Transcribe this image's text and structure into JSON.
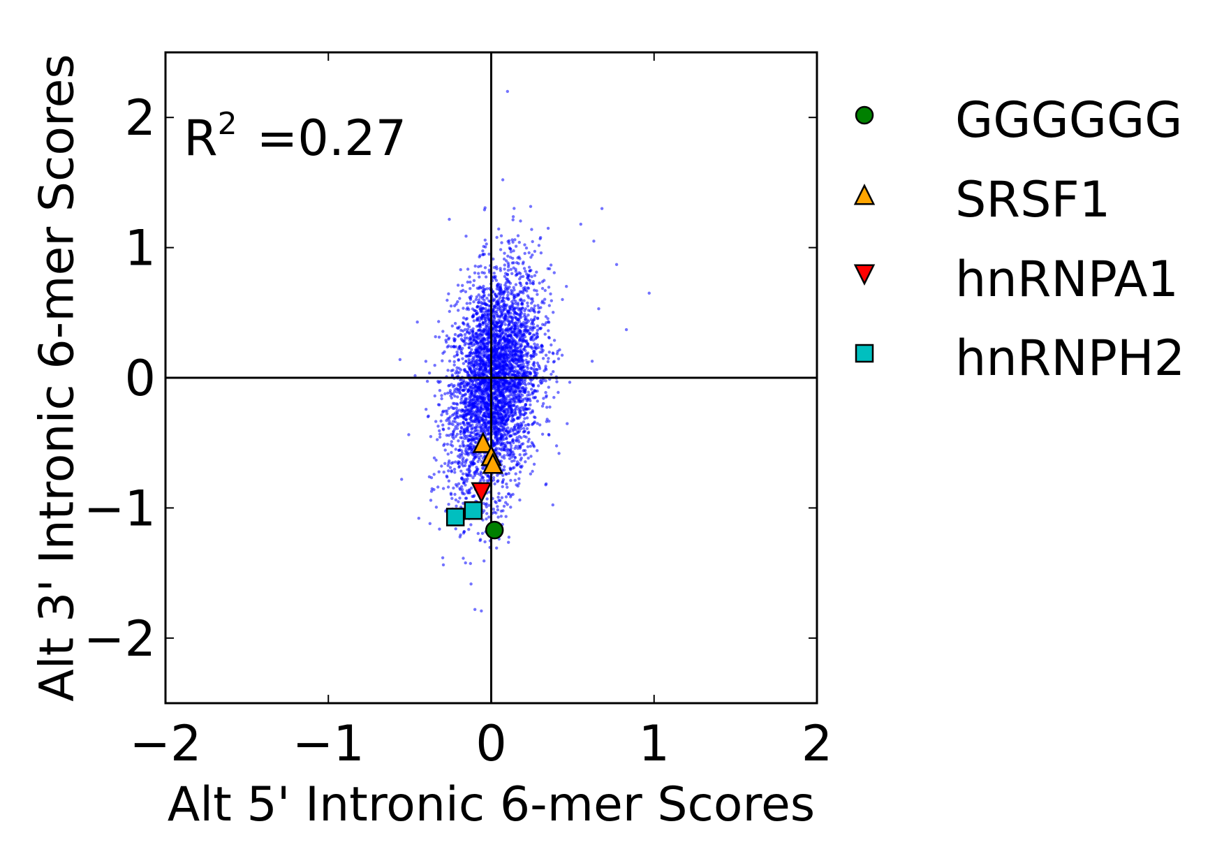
{
  "chart_data": {
    "type": "scatter",
    "xlabel": "Alt 5' Intronic 6-mer Scores",
    "ylabel": "Alt 3' Intronic 6-mer Scores",
    "xlim": [
      -2,
      2
    ],
    "ylim": [
      -2.5,
      2.5
    ],
    "x_ticks": [
      -2,
      -1,
      0,
      1,
      2
    ],
    "y_ticks": [
      -2,
      -1,
      0,
      1,
      2
    ],
    "x_tick_labels": [
      "−2",
      "−1",
      "0",
      "1",
      "2"
    ],
    "y_tick_labels": [
      "−2",
      "−1",
      "0",
      "1",
      "2"
    ],
    "annotation": {
      "base": "R",
      "superscript": "2",
      "value_text": "=0.27",
      "r_squared": 0.27
    },
    "background_scatter": {
      "color": "#0000ff",
      "approx_count": 4096,
      "center": [
        0.02,
        -0.03
      ],
      "std": [
        0.14,
        0.42
      ],
      "slope": 0.9,
      "outliers": [
        [
          -0.1,
          -1.78
        ],
        [
          0.1,
          2.2
        ],
        [
          0.97,
          0.65
        ],
        [
          0.83,
          0.37
        ],
        [
          -0.56,
          0.14
        ],
        [
          0.68,
          1.3
        ],
        [
          0.77,
          0.87
        ],
        [
          -0.55,
          -0.78
        ],
        [
          0.63,
          1.05
        ],
        [
          0.55,
          1.18
        ],
        [
          0.66,
          0.53
        ]
      ]
    },
    "legend_position": "right",
    "series": [
      {
        "name": "GGGGGG",
        "marker": "circle",
        "color": "#008000",
        "points": [
          [
            0.02,
            -1.17
          ]
        ]
      },
      {
        "name": "SRSF1",
        "marker": "triangle-up",
        "color": "#ffa500",
        "points": [
          [
            -0.05,
            -0.5
          ],
          [
            0.0,
            -0.6
          ],
          [
            0.01,
            -0.66
          ]
        ]
      },
      {
        "name": "hnRNPA1",
        "marker": "triangle-down",
        "color": "#ff0000",
        "points": [
          [
            -0.06,
            -0.88
          ]
        ]
      },
      {
        "name": "hnRNPH2",
        "marker": "square",
        "color": "#00bfbf",
        "points": [
          [
            -0.22,
            -1.07
          ],
          [
            -0.11,
            -1.02
          ]
        ]
      }
    ]
  }
}
